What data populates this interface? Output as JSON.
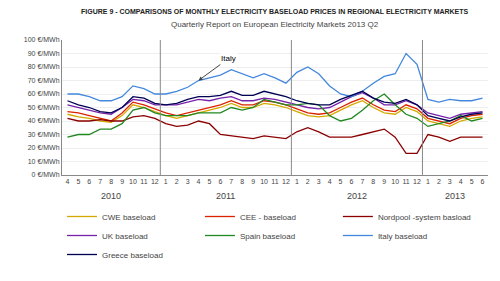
{
  "chart_data": {
    "type": "line",
    "title": "FIGURE 9 - COMPARISONS OF MONTHLY ELECTRICITY BASELOAD PRICES IN REGIONAL ELECTRICITY MARKETS",
    "subtitle": "Quarterly Report on European Electricity Markets 2013 Q2",
    "categories": [
      "4",
      "5",
      "6",
      "7",
      "8",
      "9",
      "10",
      "11",
      "12",
      "1",
      "2",
      "3",
      "4",
      "5",
      "6",
      "7",
      "8",
      "9",
      "10",
      "11",
      "12",
      "1",
      "2",
      "3",
      "4",
      "5",
      "6",
      "7",
      "8",
      "9",
      "10",
      "11",
      "12",
      "1",
      "2",
      "3",
      "4",
      "5",
      "6"
    ],
    "category_groups": [
      {
        "label": "2010",
        "count": 9
      },
      {
        "label": "2011",
        "count": 12
      },
      {
        "label": "2012",
        "count": 12
      },
      {
        "label": "2013",
        "count": 6
      }
    ],
    "series": [
      {
        "name": "CWE baseload",
        "color": "#d4aa00",
        "values": [
          45,
          43,
          42,
          40,
          39,
          44,
          52,
          50,
          47,
          44,
          42,
          44,
          46,
          48,
          50,
          53,
          50,
          50,
          53,
          52,
          50,
          47,
          44,
          43,
          44,
          48,
          52,
          55,
          50,
          46,
          45,
          50,
          47,
          40,
          38,
          36,
          40,
          42,
          43
        ]
      },
      {
        "name": "CEE - baseload",
        "color": "#dd2200",
        "values": [
          47,
          46,
          44,
          42,
          40,
          46,
          54,
          52,
          49,
          46,
          44,
          46,
          48,
          50,
          52,
          55,
          52,
          52,
          55,
          54,
          52,
          49,
          46,
          45,
          46,
          50,
          54,
          57,
          52,
          48,
          47,
          52,
          49,
          42,
          40,
          38,
          42,
          44,
          45
        ]
      },
      {
        "name": "Nordpool -system basload",
        "color": "#8b0000",
        "values": [
          42,
          40,
          40,
          41,
          40,
          40,
          43,
          44,
          42,
          38,
          36,
          37,
          40,
          38,
          30,
          29,
          28,
          27,
          29,
          28,
          27,
          32,
          35,
          32,
          28,
          28,
          28,
          30,
          32,
          34,
          28,
          16,
          16,
          30,
          28,
          25,
          28,
          28,
          28
        ]
      },
      {
        "name": "UK baseload",
        "color": "#7722aa",
        "values": [
          52,
          50,
          48,
          46,
          45,
          50,
          56,
          55,
          52,
          52,
          52,
          54,
          56,
          55,
          57,
          58,
          55,
          55,
          57,
          56,
          54,
          52,
          50,
          49,
          50,
          54,
          58,
          61,
          57,
          52,
          52,
          55,
          52,
          46,
          44,
          42,
          45,
          46,
          47
        ]
      },
      {
        "name": "Spain baseload",
        "color": "#228822",
        "values": [
          28,
          30,
          30,
          34,
          34,
          38,
          48,
          50,
          46,
          44,
          44,
          44,
          46,
          46,
          46,
          50,
          48,
          50,
          56,
          54,
          52,
          52,
          53,
          52,
          44,
          40,
          42,
          48,
          55,
          60,
          52,
          45,
          42,
          36,
          38,
          40,
          44,
          40,
          42
        ]
      },
      {
        "name": "Italy baseload",
        "color": "#4488dd",
        "values": [
          60,
          60,
          58,
          55,
          55,
          58,
          66,
          64,
          60,
          60,
          62,
          65,
          70,
          72,
          74,
          78,
          75,
          72,
          75,
          72,
          68,
          76,
          80,
          75,
          66,
          60,
          58,
          62,
          68,
          73,
          75,
          90,
          82,
          56,
          54,
          56,
          55,
          55,
          57
        ]
      },
      {
        "name": "Greece baseload",
        "color": "#000055",
        "values": [
          55,
          52,
          50,
          47,
          46,
          50,
          58,
          57,
          53,
          52,
          53,
          56,
          58,
          58,
          59,
          62,
          59,
          59,
          62,
          60,
          58,
          55,
          53,
          52,
          52,
          56,
          59,
          62,
          57,
          54,
          53,
          56,
          52,
          44,
          42,
          40,
          43,
          45,
          46
        ]
      }
    ],
    "annotations": [
      {
        "text": "Italy",
        "x": 12,
        "y": 70
      }
    ],
    "ylim": [
      0,
      100
    ],
    "yticks": [
      {
        "value": 0,
        "label": "0 €/MWh"
      },
      {
        "value": 10,
        "label": "10 €/MWh"
      },
      {
        "value": 20,
        "label": "20 €/MWh"
      },
      {
        "value": 30,
        "label": "30 €/MWh"
      },
      {
        "value": 40,
        "label": "40 €/MWh"
      },
      {
        "value": 50,
        "label": "50 €/MWh"
      },
      {
        "value": 60,
        "label": "60 €/MWh"
      },
      {
        "value": 70,
        "label": "70 €/MWh"
      },
      {
        "value": 80,
        "label": "80 €/MWh"
      },
      {
        "value": 90,
        "label": "90 €/MWh"
      },
      {
        "value": 100,
        "label": "100 €/MWh"
      }
    ],
    "grid": true,
    "legend": "bottom"
  }
}
